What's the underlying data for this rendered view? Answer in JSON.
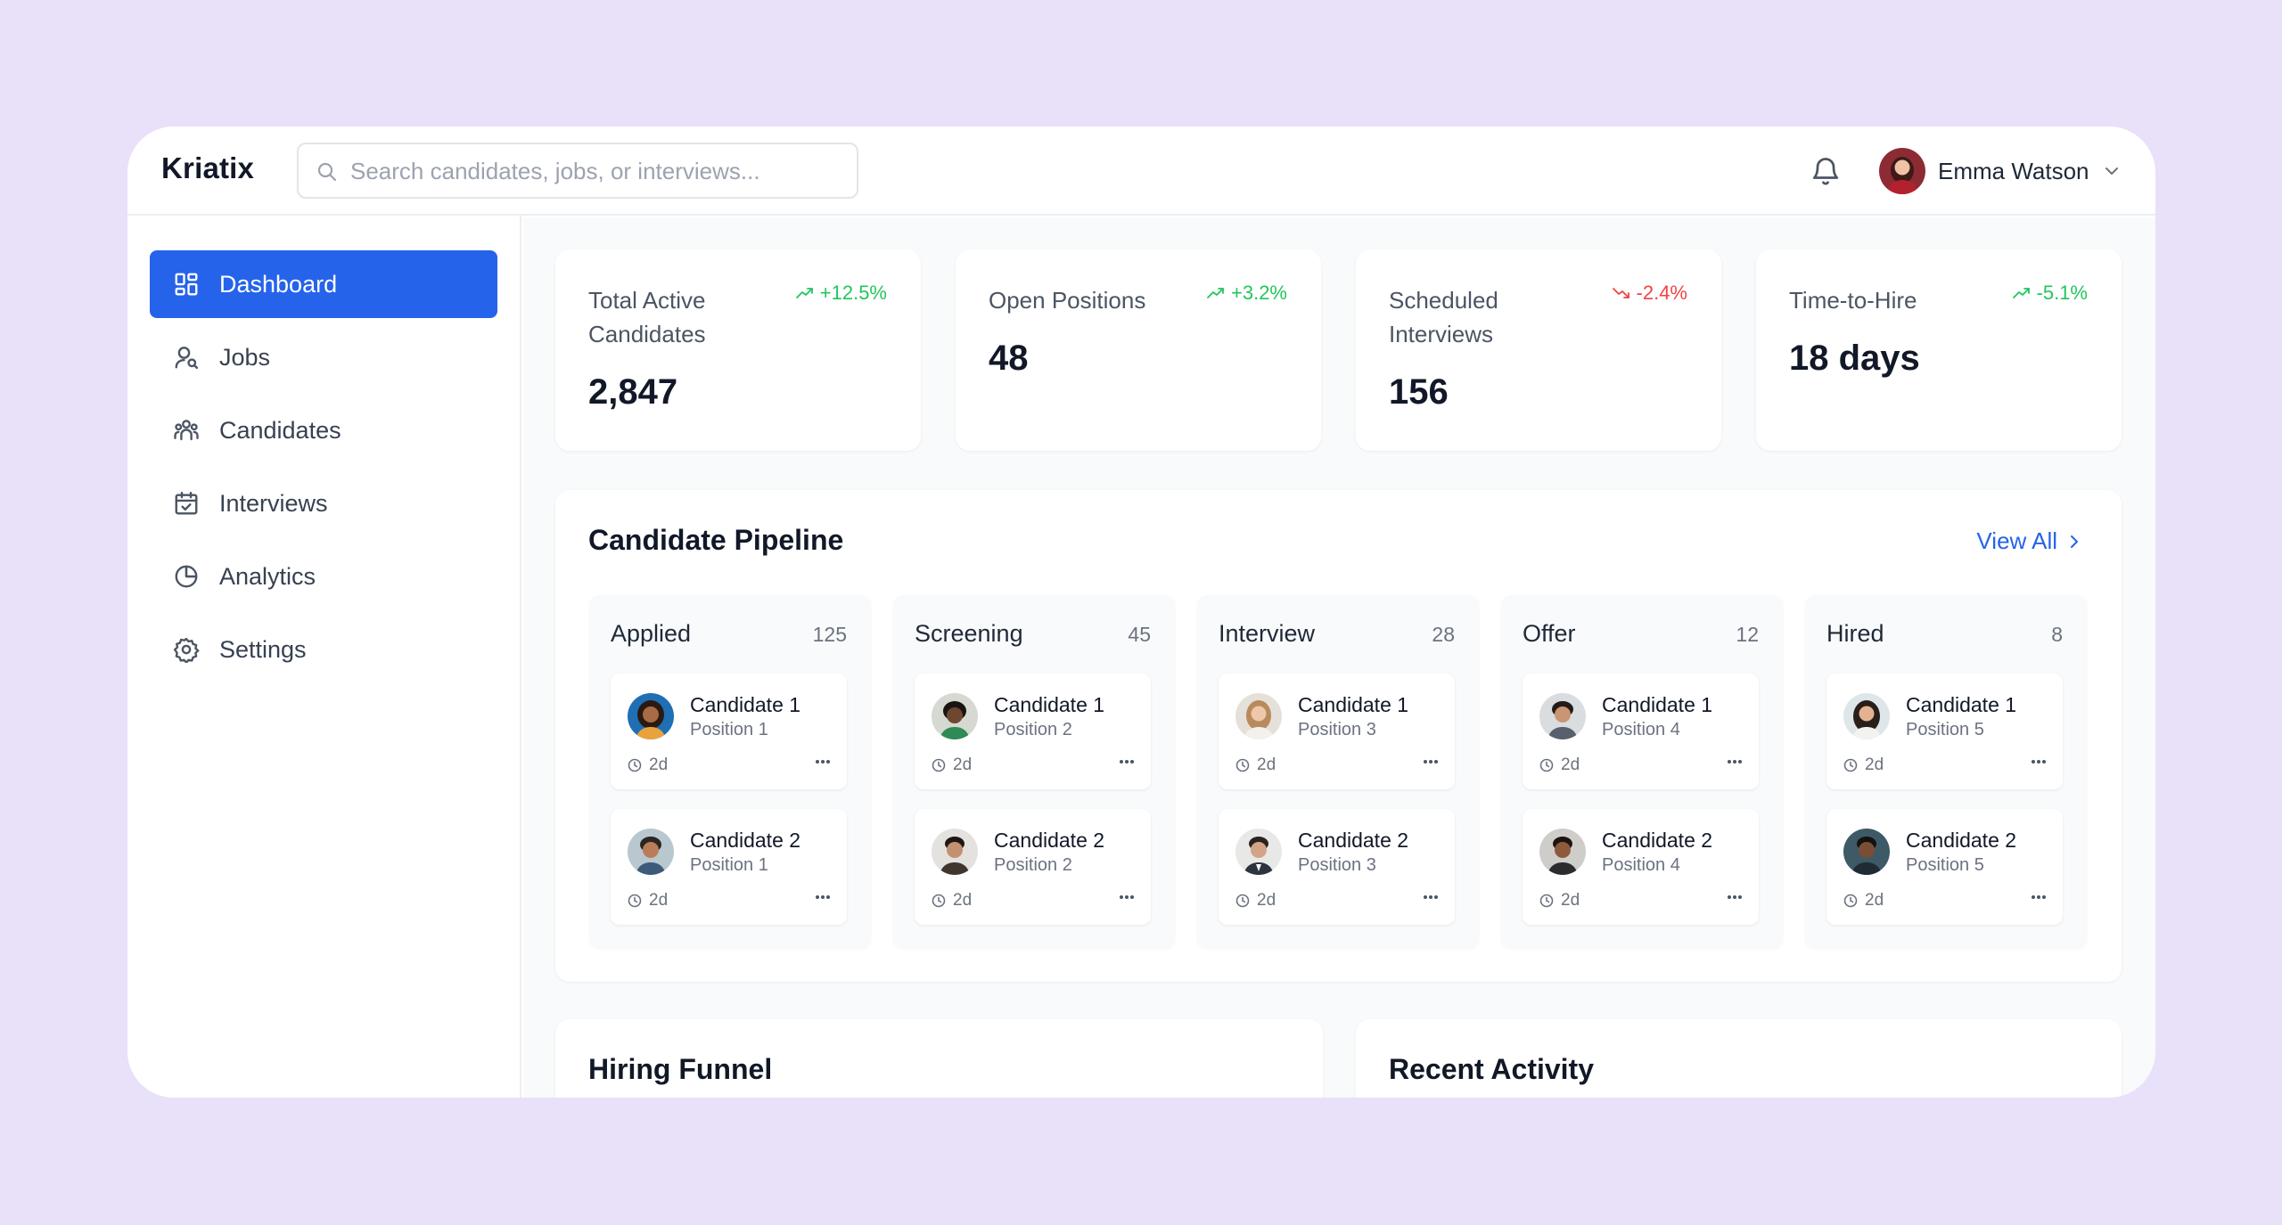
{
  "app": {
    "name": "Kriatix"
  },
  "search": {
    "placeholder": "Search candidates, jobs, or interviews..."
  },
  "user": {
    "name": "Emma Watson"
  },
  "sidebar": {
    "items": [
      {
        "label": "Dashboard",
        "icon": "dashboard-icon",
        "active": true
      },
      {
        "label": "Jobs",
        "icon": "jobs-icon"
      },
      {
        "label": "Candidates",
        "icon": "candidates-icon"
      },
      {
        "label": "Interviews",
        "icon": "calendar-icon"
      },
      {
        "label": "Analytics",
        "icon": "pie-chart-icon"
      },
      {
        "label": "Settings",
        "icon": "gear-icon"
      }
    ]
  },
  "kpis": [
    {
      "label": "Total Active Candidates",
      "value": "2,847",
      "change": "+12.5%",
      "trend": "up"
    },
    {
      "label": "Open Positions",
      "value": "48",
      "change": "+3.2%",
      "trend": "up"
    },
    {
      "label": "Scheduled Interviews",
      "value": "156",
      "change": "-2.4%",
      "trend": "down"
    },
    {
      "label": "Time-to-Hire",
      "value": "18 days",
      "change": "-5.1%",
      "trend": "up"
    }
  ],
  "pipeline": {
    "title": "Candidate Pipeline",
    "view_all": "View All",
    "stages": [
      {
        "name": "Applied",
        "count": "125",
        "cards": [
          {
            "name": "Candidate 1",
            "position": "Position 1",
            "time": "2d"
          },
          {
            "name": "Candidate 2",
            "position": "Position 1",
            "time": "2d"
          }
        ]
      },
      {
        "name": "Screening",
        "count": "45",
        "cards": [
          {
            "name": "Candidate 1",
            "position": "Position 2",
            "time": "2d"
          },
          {
            "name": "Candidate 2",
            "position": "Position 2",
            "time": "2d"
          }
        ]
      },
      {
        "name": "Interview",
        "count": "28",
        "cards": [
          {
            "name": "Candidate 1",
            "position": "Position 3",
            "time": "2d"
          },
          {
            "name": "Candidate 2",
            "position": "Position 3",
            "time": "2d"
          }
        ]
      },
      {
        "name": "Offer",
        "count": "12",
        "cards": [
          {
            "name": "Candidate 1",
            "position": "Position 4",
            "time": "2d"
          },
          {
            "name": "Candidate 2",
            "position": "Position 4",
            "time": "2d"
          }
        ]
      },
      {
        "name": "Hired",
        "count": "8",
        "cards": [
          {
            "name": "Candidate 1",
            "position": "Position 5",
            "time": "2d"
          },
          {
            "name": "Candidate 2",
            "position": "Position 5",
            "time": "2d"
          }
        ]
      }
    ]
  },
  "panels": {
    "hiring_funnel": "Hiring Funnel",
    "recent_activity": "Recent Activity"
  },
  "colors": {
    "accent": "#2563eb",
    "positive": "#22c55e",
    "negative": "#ef4444",
    "background": "#e9e0f9"
  }
}
